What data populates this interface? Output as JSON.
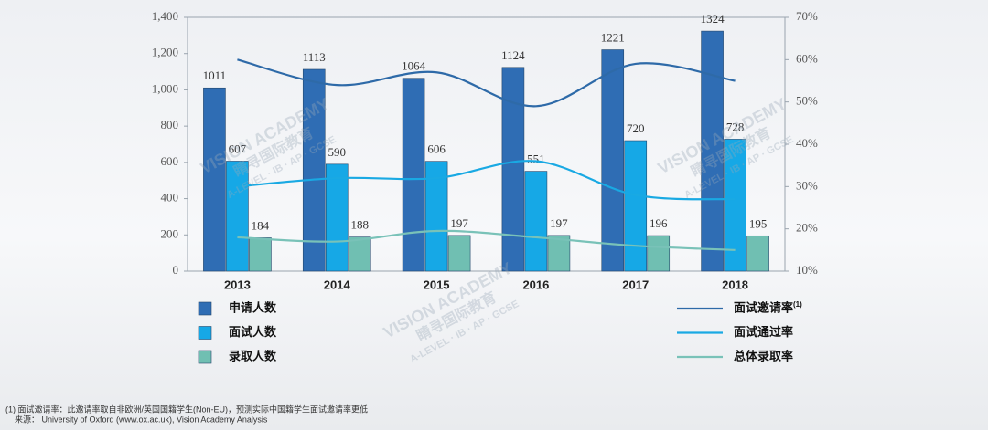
{
  "chart_data": {
    "type": "bar",
    "categories": [
      "2013",
      "2014",
      "2015",
      "2016",
      "2017",
      "2018"
    ],
    "series": [
      {
        "name": "申请人数",
        "color": "#2f6db4",
        "values": [
          1011,
          1113,
          1064,
          1124,
          1221,
          1324
        ]
      },
      {
        "name": "面试人数",
        "color": "#16a8e6",
        "values": [
          607,
          590,
          606,
          551,
          720,
          728
        ]
      },
      {
        "name": "录取人数",
        "color": "#70bfb2",
        "values": [
          184,
          188,
          197,
          197,
          196,
          195
        ]
      },
      {
        "name": "面试邀请率",
        "footnote_marker": "(1)",
        "color": "#2e6aa8",
        "axis": "y2",
        "type": "line",
        "values": [
          60,
          54,
          57,
          49,
          59,
          55
        ]
      },
      {
        "name": "面试通过率",
        "color": "#19a9e3",
        "axis": "y2",
        "type": "line",
        "values": [
          30,
          32,
          32,
          36,
          28,
          27
        ]
      },
      {
        "name": "总体录取率",
        "color": "#79c2b8",
        "axis": "y2",
        "type": "line",
        "values": [
          18,
          17,
          19.5,
          18,
          16,
          15
        ]
      }
    ],
    "ylim": [
      0,
      1400
    ],
    "yticks": [
      0,
      200,
      400,
      600,
      800,
      {
        "value": 1000,
        "label": "1,000"
      },
      {
        "value": 1200,
        "label": "1,200"
      },
      {
        "value": 1400,
        "label": "1,400"
      }
    ],
    "y2lim": [
      10,
      70
    ],
    "y2ticks": [
      {
        "value": 10,
        "label": "10%"
      },
      {
        "value": 20,
        "label": "20%"
      },
      {
        "value": 30,
        "label": "30%"
      },
      {
        "value": 40,
        "label": "40%"
      },
      {
        "value": 50,
        "label": "50%"
      },
      {
        "value": 60,
        "label": "60%"
      },
      {
        "value": 70,
        "label": "70%"
      }
    ],
    "footnotes": [
      "(1) 面试邀请率：此邀请率取自非欧洲/英国国籍学生(Non-EU)，预测实际中国籍学生面试邀请率更低",
      "来源： University of Oxford (www.ox.ac.uk), Vision Academy Analysis"
    ],
    "watermark": [
      "VISION ACADEMY",
      "睛寻国际教育",
      "A-LEVEL · IB · AP · GCSE"
    ]
  }
}
